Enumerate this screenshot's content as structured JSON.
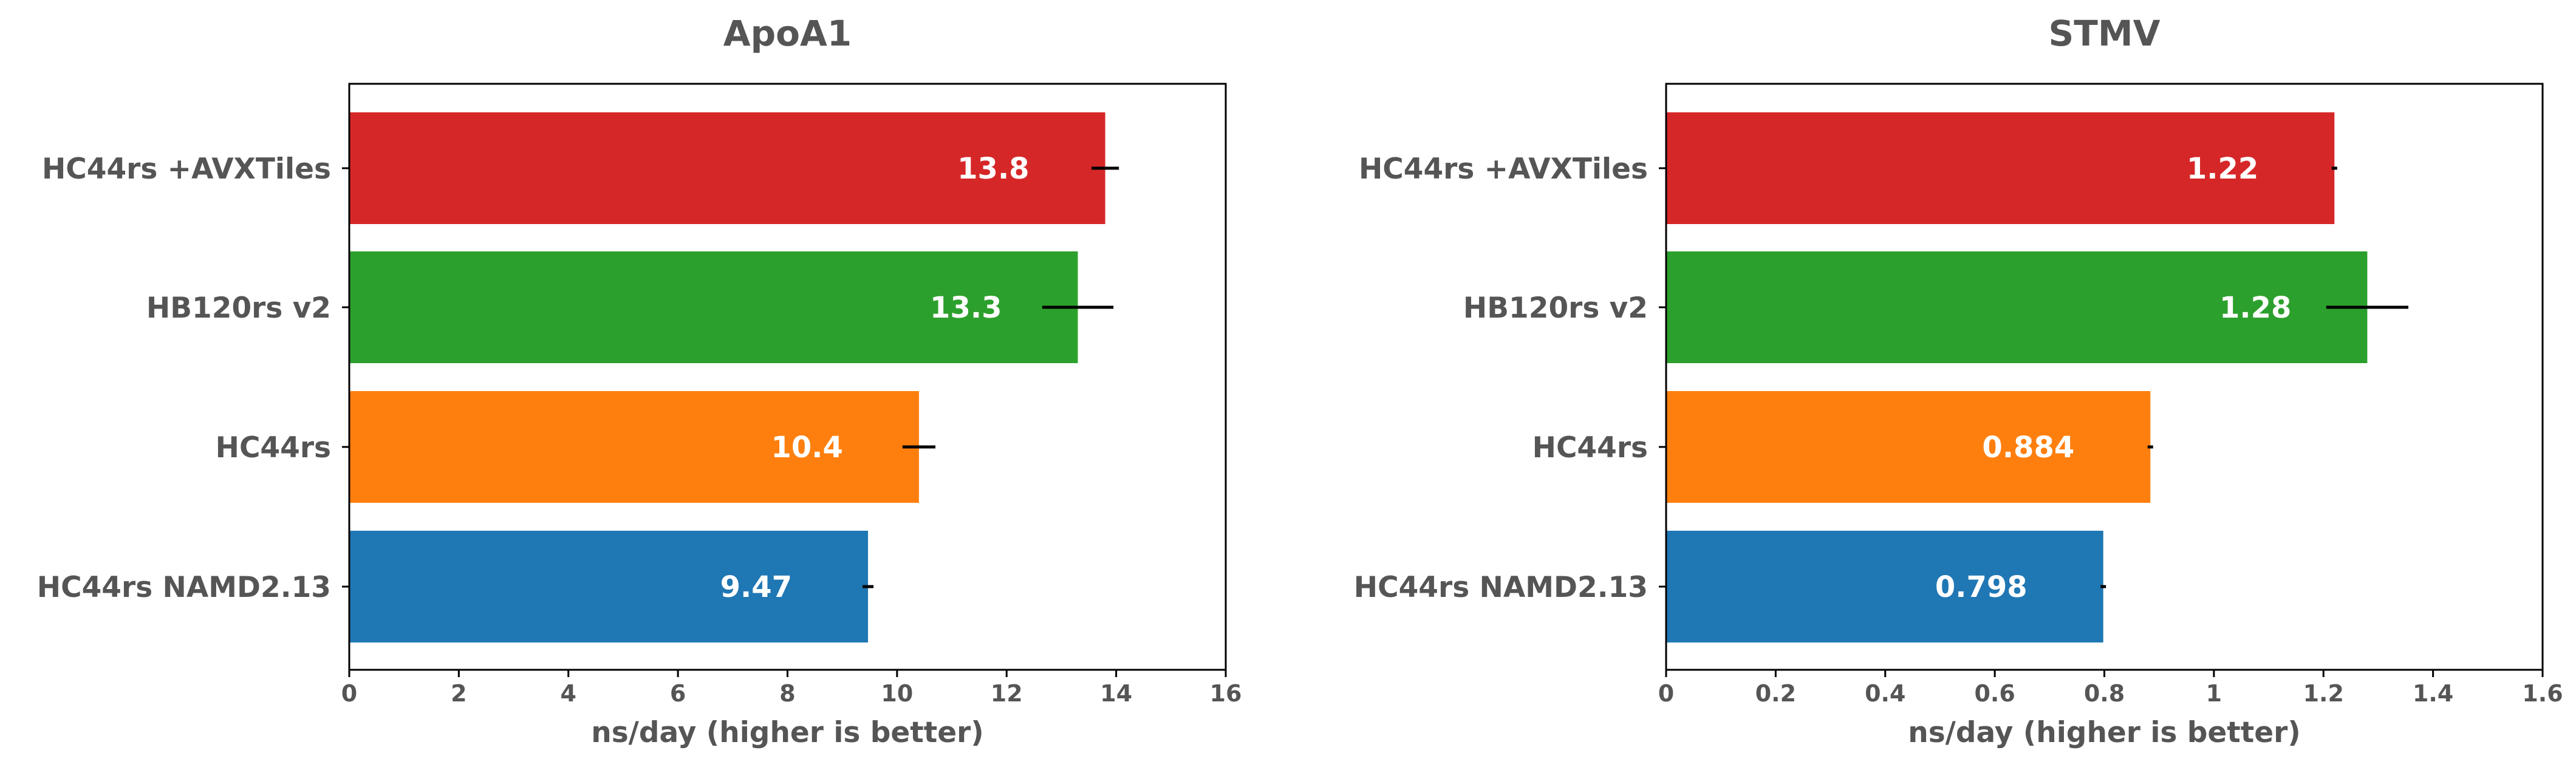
{
  "chart_data": [
    {
      "type": "bar",
      "orientation": "horizontal",
      "title": "ApoA1",
      "xlabel": "ns/day (higher is better)",
      "ylabel": "",
      "xlim": [
        0,
        16
      ],
      "xticks": [
        "0",
        "2",
        "4",
        "6",
        "8",
        "10",
        "12",
        "14",
        "16"
      ],
      "categories": [
        "HC44rs +AVXTiles",
        "HB120rs v2",
        "HC44rs",
        "HC44rs NAMD2.13"
      ],
      "values": [
        13.8,
        13.3,
        10.4,
        9.47
      ],
      "value_labels": [
        "13.8",
        "13.3",
        "10.4",
        "9.47"
      ],
      "errors": [
        0.25,
        0.65,
        0.3,
        0.1
      ],
      "colors": [
        "#d62728",
        "#2ca02c",
        "#ff7f0e",
        "#1f77b4"
      ]
    },
    {
      "type": "bar",
      "orientation": "horizontal",
      "title": "STMV",
      "xlabel": "ns/day (higher is better)",
      "ylabel": "",
      "xlim": [
        0,
        1.6
      ],
      "xticks": [
        "0",
        "0.2",
        "0.4",
        "0.6",
        "0.8",
        "1",
        "1.2",
        "1.4",
        "1.6"
      ],
      "categories": [
        "HC44rs +AVXTiles",
        "HB120rs v2",
        "HC44rs",
        "HC44rs NAMD2.13"
      ],
      "values": [
        1.22,
        1.28,
        0.884,
        0.798
      ],
      "value_labels": [
        "1.22",
        "1.28",
        "0.884",
        "0.798"
      ],
      "errors": [
        0.005,
        0.075,
        0.005,
        0.005
      ],
      "colors": [
        "#d62728",
        "#2ca02c",
        "#ff7f0e",
        "#1f77b4"
      ]
    }
  ]
}
